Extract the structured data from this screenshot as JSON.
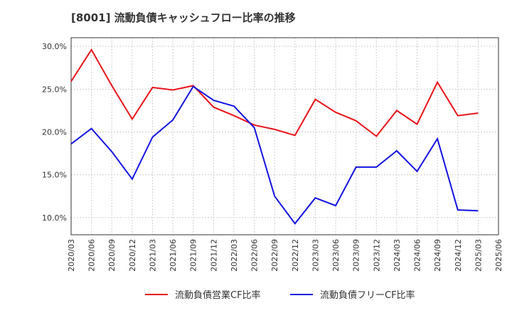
{
  "title": "[8001]  流動負債キャッシュフロー比率の推移",
  "chart_data": {
    "type": "line",
    "title": "[8001]  流動負債キャッシュフロー比率の推移",
    "x": [
      "2020/03",
      "2020/06",
      "2020/09",
      "2020/12",
      "2021/03",
      "2021/06",
      "2021/09",
      "2021/12",
      "2022/03",
      "2022/06",
      "2022/09",
      "2022/12",
      "2023/03",
      "2023/06",
      "2023/09",
      "2023/12",
      "2024/03",
      "2024/06",
      "2024/09",
      "2024/12",
      "2025/03",
      "2025/06"
    ],
    "ylim": [
      8.0,
      31.0
    ],
    "yticks": [
      10.0,
      15.0,
      20.0,
      25.0,
      30.0
    ],
    "ytick_labels": [
      "10.0%",
      "15.0%",
      "20.0%",
      "25.0%",
      "30.0%"
    ],
    "grid": true,
    "legend_position": "bottom",
    "series": [
      {
        "name": "流動負債営業CF比率",
        "color": "#e8141b",
        "values": [
          25.9,
          29.6,
          25.4,
          21.5,
          25.2,
          24.9,
          25.4,
          22.9,
          21.9,
          20.8,
          20.3,
          19.6,
          23.8,
          22.3,
          21.3,
          19.5,
          22.5,
          20.9,
          25.8,
          21.9,
          22.2,
          null
        ]
      },
      {
        "name": "流動負債フリーCF比率",
        "color": "#1414e0",
        "values": [
          18.6,
          20.4,
          17.7,
          14.5,
          19.4,
          21.4,
          25.3,
          23.7,
          23.0,
          20.5,
          12.5,
          9.3,
          12.3,
          11.4,
          15.9,
          15.9,
          17.8,
          15.4,
          19.2,
          10.9,
          10.8,
          null
        ]
      }
    ]
  }
}
